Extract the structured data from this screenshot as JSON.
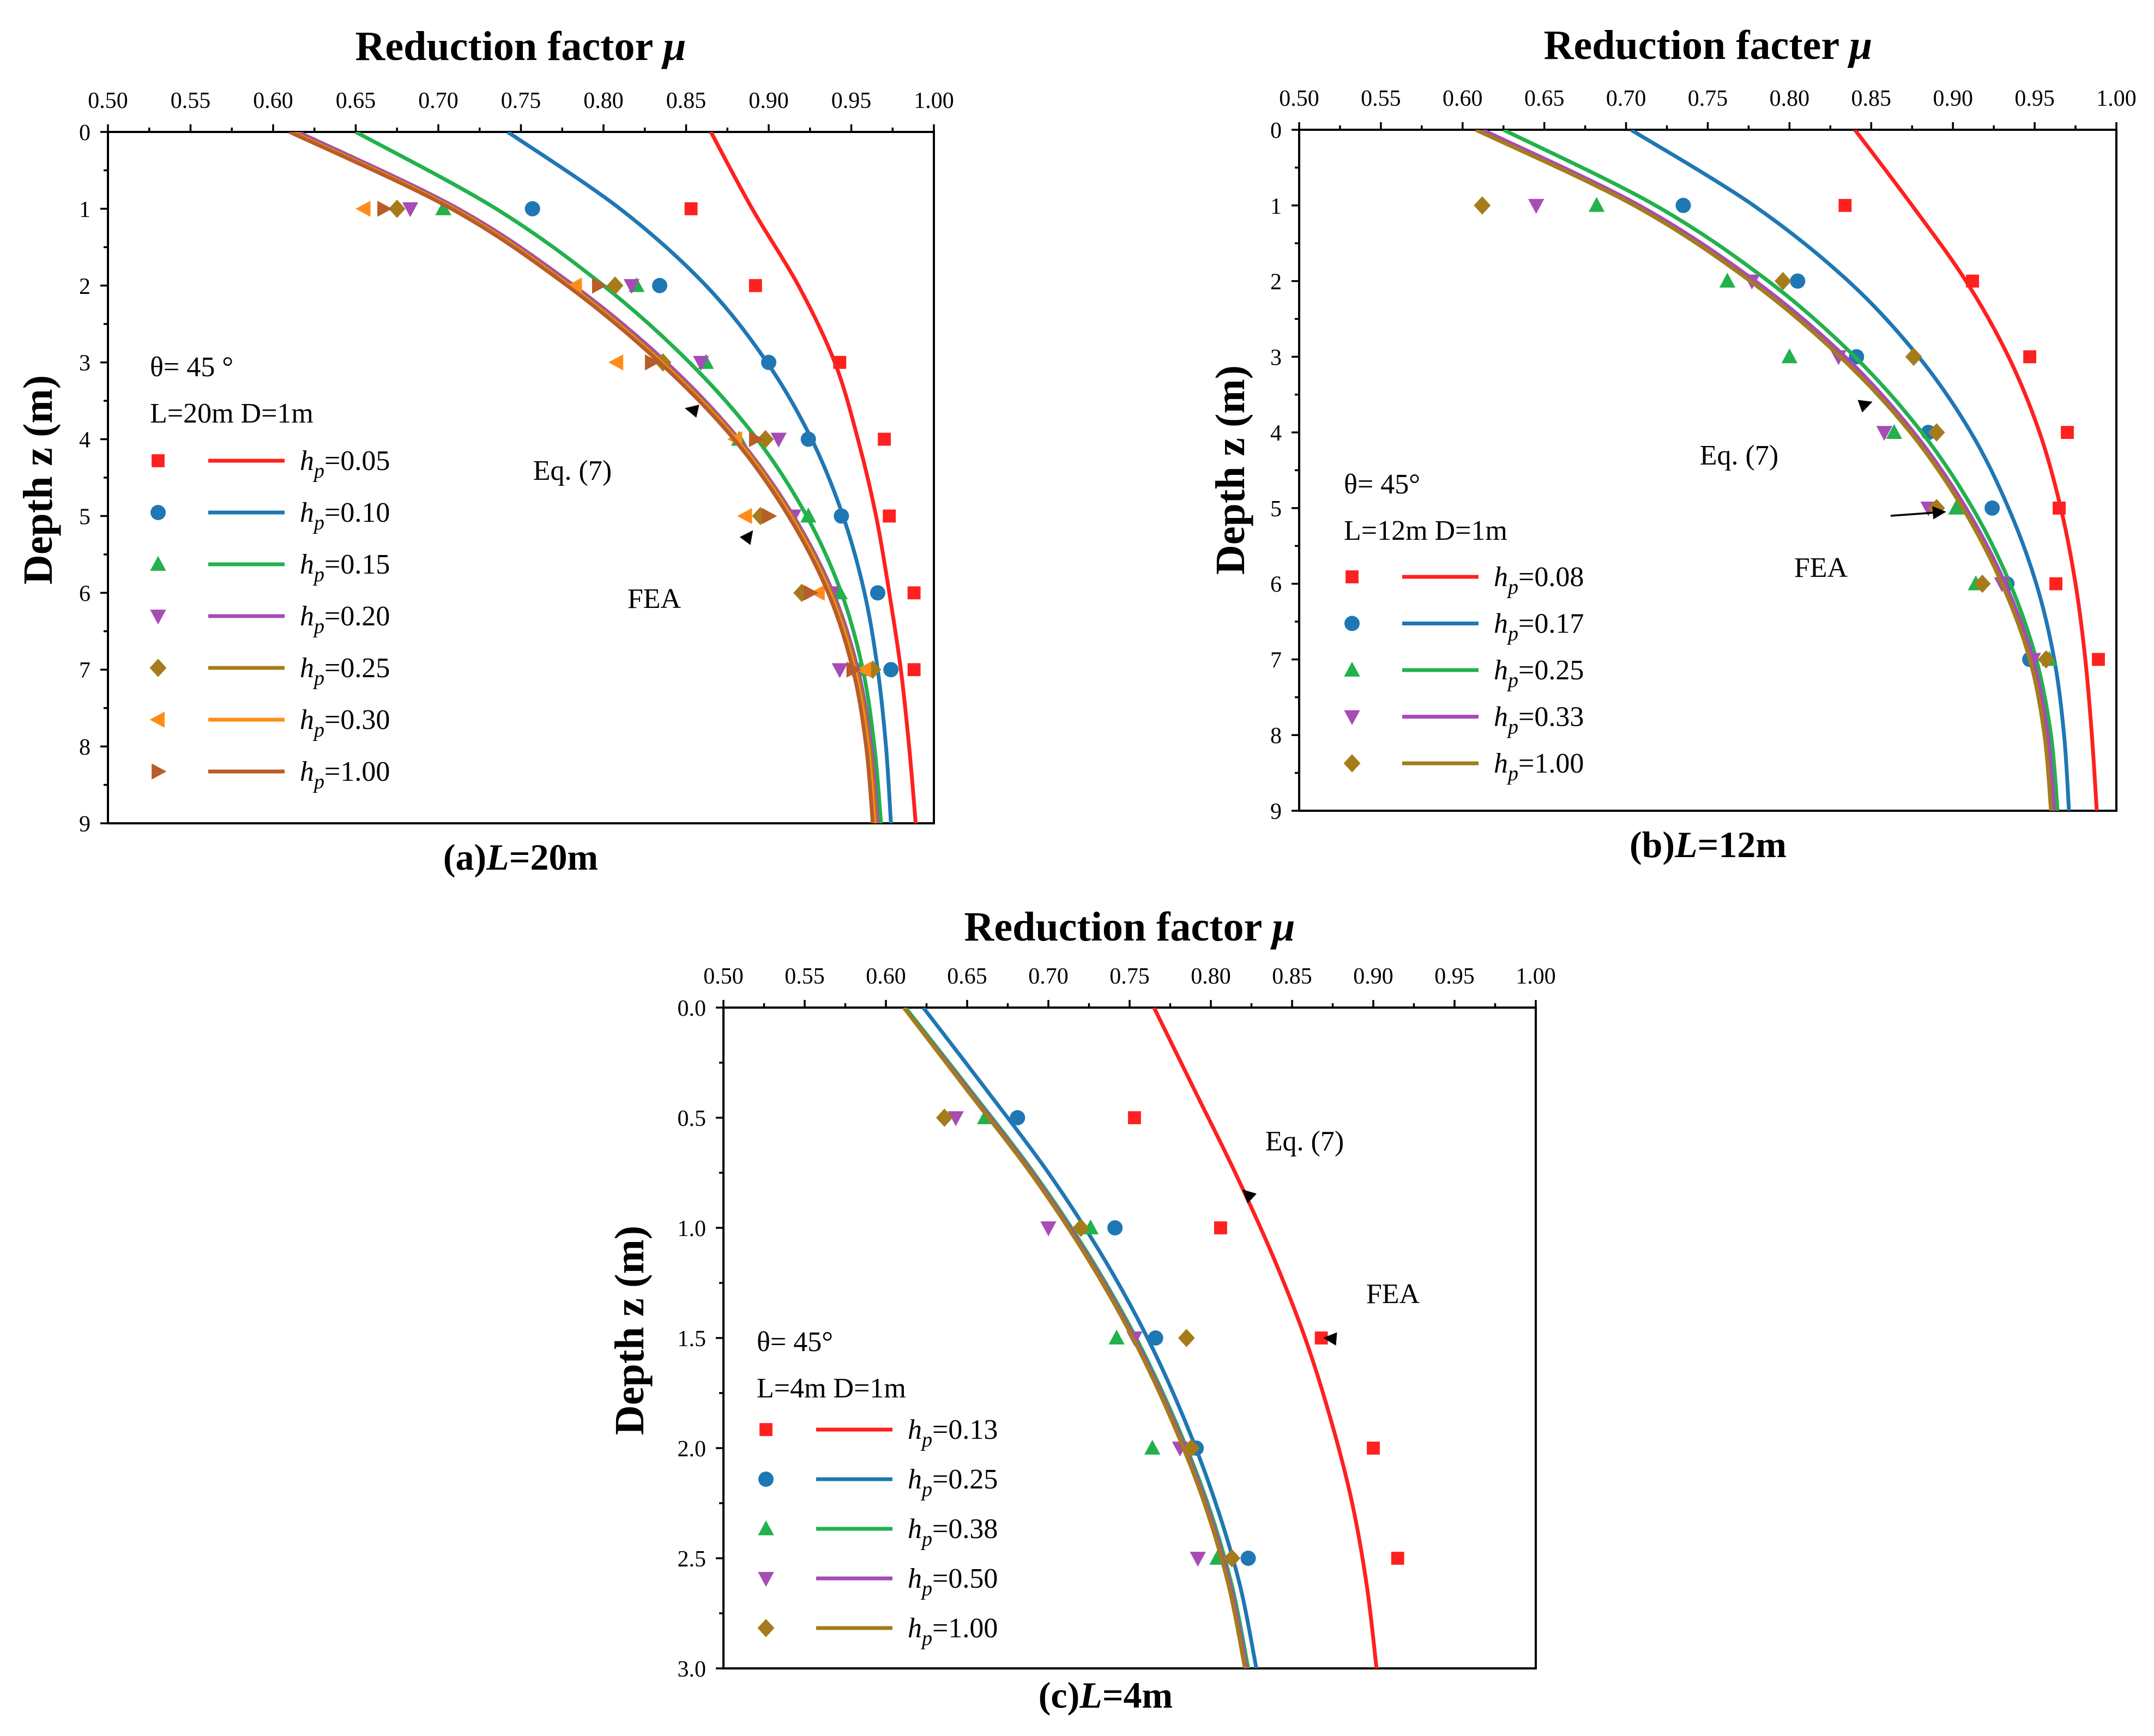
{
  "chart_data": [
    {
      "id": "a",
      "type": "scatter+line",
      "title": "Reduction factor μ",
      "title_text": "Reduction factor",
      "xlabel": "Reduction factor μ",
      "ylabel": "Depth z (m)",
      "caption_prefix": "(a)",
      "caption_var": "L",
      "caption_suffix": "=20m",
      "xlim": [
        0.5,
        1.0
      ],
      "ylim": [
        0,
        9
      ],
      "x_ticks": [
        "0.50",
        "0.55",
        "0.60",
        "0.65",
        "0.70",
        "0.75",
        "0.80",
        "0.85",
        "0.90",
        "0.95",
        "1.00"
      ],
      "y_ticks": [
        "0",
        "1",
        "2",
        "3",
        "4",
        "5",
        "6",
        "7",
        "8",
        "9"
      ],
      "params": [
        "θ= 45 °",
        "L=20m D=1m"
      ],
      "annotations": [
        {
          "text": "Eq. (7)",
          "target": {
            "x": 0.85,
            "z": 3.6
          }
        },
        {
          "text": "FEA",
          "target": {
            "x": 0.89,
            "z": 5.2
          }
        }
      ],
      "series": [
        {
          "name": "hp=0.05",
          "hp_label": "=0.05",
          "color": "#FF2020",
          "marker": "square",
          "curve": {
            "x": [
              0.865,
              0.89,
              0.918,
              0.94,
              0.954,
              0.965,
              0.973,
              0.98,
              0.985,
              0.989
            ],
            "z": [
              0,
              1,
              2,
              3,
              4,
              5,
              6,
              7,
              8,
              9
            ]
          },
          "points": {
            "x": [
              0.853,
              0.892,
              0.943,
              0.97,
              0.973,
              0.988,
              0.988
            ],
            "z": [
              1,
              2,
              3,
              4,
              5,
              6,
              7
            ]
          }
        },
        {
          "name": "hp=0.10",
          "hp_label": "=0.10",
          "color": "#1F77B4",
          "marker": "circle",
          "curve": {
            "x": [
              0.742,
              0.81,
              0.862,
              0.899,
              0.926,
              0.945,
              0.958,
              0.966,
              0.971,
              0.974
            ],
            "z": [
              0,
              1,
              2,
              3,
              4,
              5,
              6,
              7,
              8,
              9
            ]
          },
          "points": {
            "x": [
              0.757,
              0.834,
              0.9,
              0.924,
              0.944,
              0.966,
              0.974
            ],
            "z": [
              1,
              2,
              3,
              4,
              5,
              6,
              7
            ]
          }
        },
        {
          "name": "hp=0.15",
          "hp_label": "=0.15",
          "color": "#22B14C",
          "marker": "triangle-up",
          "curve": {
            "x": [
              0.65,
              0.735,
              0.8,
              0.852,
              0.893,
              0.923,
              0.944,
              0.957,
              0.964,
              0.968
            ],
            "z": [
              0,
              1,
              2,
              3,
              4,
              5,
              6,
              7,
              8,
              9
            ]
          },
          "points": {
            "x": [
              0.703,
              0.82,
              0.862,
              0.882,
              0.924,
              0.943,
              0.955
            ],
            "z": [
              1,
              2,
              3,
              4,
              5,
              6,
              7
            ]
          }
        },
        {
          "name": "hp=0.20",
          "hp_label": "=0.20",
          "color": "#A64CB4",
          "marker": "triangle-down",
          "curve": {
            "x": [
              0.615,
              0.712,
              0.782,
              0.838,
              0.882,
              0.915,
              0.939,
              0.954,
              0.962,
              0.966
            ],
            "z": [
              0,
              1,
              2,
              3,
              4,
              5,
              6,
              7,
              8,
              9
            ]
          },
          "points": {
            "x": [
              0.683,
              0.817,
              0.859,
              0.906,
              0.915,
              0.938,
              0.943
            ],
            "z": [
              1,
              2,
              3,
              4,
              5,
              6,
              7
            ]
          }
        },
        {
          "name": "hp=0.25",
          "hp_label": "=0.25",
          "color": "#A67C1A",
          "marker": "diamond",
          "curve": {
            "x": [
              0.612,
              0.71,
              0.78,
              0.836,
              0.881,
              0.914,
              0.938,
              0.953,
              0.961,
              0.965
            ],
            "z": [
              0,
              1,
              2,
              3,
              4,
              5,
              6,
              7,
              8,
              9
            ]
          },
          "points": {
            "x": [
              0.675,
              0.807,
              0.836,
              0.898,
              0.895,
              0.92,
              0.963
            ],
            "z": [
              1,
              2,
              3,
              4,
              5,
              6,
              7
            ]
          }
        },
        {
          "name": "hp=0.30",
          "hp_label": "=0.30",
          "color": "#FF8C1A",
          "marker": "triangle-left",
          "curve": {
            "x": [
              0.611,
              0.709,
              0.779,
              0.835,
              0.88,
              0.913,
              0.937,
              0.952,
              0.96,
              0.964
            ],
            "z": [
              0,
              1,
              2,
              3,
              4,
              5,
              6,
              7,
              8,
              9
            ]
          },
          "points": {
            "x": [
              0.655,
              0.783,
              0.808,
              0.88,
              0.886,
              0.93,
              0.958
            ],
            "z": [
              1,
              2,
              3,
              4,
              5,
              6,
              7
            ]
          }
        },
        {
          "name": "hp=1.00",
          "hp_label": "=1.00",
          "color": "#B85C2A",
          "marker": "triangle-right",
          "curve": {
            "x": [
              0.61,
              0.708,
              0.778,
              0.834,
              0.879,
              0.912,
              0.936,
              0.951,
              0.959,
              0.963
            ],
            "z": [
              0,
              1,
              2,
              3,
              4,
              5,
              6,
              7,
              8,
              9
            ]
          },
          "points": {
            "x": [
              0.667,
              0.797,
              0.829,
              0.892,
              0.9,
              0.925,
              0.951
            ],
            "z": [
              1,
              2,
              3,
              4,
              5,
              6,
              7
            ]
          }
        }
      ]
    },
    {
      "id": "b",
      "type": "scatter+line",
      "title": "Reduction facter μ",
      "title_text": "Reduction facter",
      "xlabel": "Reduction facter μ",
      "ylabel": "Depth z (m)",
      "caption_prefix": "(b)",
      "caption_var": "L",
      "caption_suffix": "=12m",
      "xlim": [
        0.5,
        1.0
      ],
      "ylim": [
        0,
        9
      ],
      "x_ticks": [
        "0.50",
        "0.55",
        "0.60",
        "0.65",
        "0.70",
        "0.75",
        "0.80",
        "0.85",
        "0.90",
        "0.95",
        "1.00"
      ],
      "y_ticks": [
        "0",
        "1",
        "2",
        "3",
        "4",
        "5",
        "6",
        "7",
        "8",
        "9"
      ],
      "params": [
        "θ= 45°",
        "L=12m D=1m"
      ],
      "annotations": [
        {
          "text": "Eq. (7)",
          "target": {
            "x": 0.85,
            "z": 3.6
          }
        },
        {
          "text": "FEA",
          "target": {
            "x": 0.895,
            "z": 5.05
          }
        }
      ],
      "series": [
        {
          "name": "hp=0.08",
          "hp_label": "=0.08",
          "color": "#FF2020",
          "marker": "square",
          "curve": {
            "x": [
              0.84,
              0.875,
              0.908,
              0.934,
              0.953,
              0.966,
              0.975,
              0.981,
              0.985,
              0.988
            ],
            "z": [
              0,
              1,
              2,
              3,
              4,
              5,
              6,
              7,
              8,
              9
            ]
          },
          "points": {
            "x": [
              0.834,
              0.912,
              0.947,
              0.97,
              0.965,
              0.963,
              0.989
            ],
            "z": [
              1,
              2,
              3,
              4,
              5,
              6,
              7
            ]
          }
        },
        {
          "name": "hp=0.17",
          "hp_label": "=0.17",
          "color": "#1F77B4",
          "marker": "circle",
          "curve": {
            "x": [
              0.703,
              0.778,
              0.836,
              0.879,
              0.911,
              0.934,
              0.951,
              0.962,
              0.968,
              0.971
            ],
            "z": [
              0,
              1,
              2,
              3,
              4,
              5,
              6,
              7,
              8,
              9
            ]
          },
          "points": {
            "x": [
              0.735,
              0.805,
              0.841,
              0.885,
              0.924,
              0.933,
              0.947
            ],
            "z": [
              1,
              2,
              3,
              4,
              5,
              6,
              7
            ]
          }
        },
        {
          "name": "hp=0.25",
          "hp_label": "=0.25",
          "color": "#22B14C",
          "marker": "triangle-up",
          "curve": {
            "x": [
              0.625,
              0.718,
              0.787,
              0.84,
              0.881,
              0.912,
              0.935,
              0.951,
              0.96,
              0.964
            ],
            "z": [
              0,
              1,
              2,
              3,
              4,
              5,
              6,
              7,
              8,
              9
            ]
          },
          "points": {
            "x": [
              0.682,
              0.762,
              0.8,
              0.864,
              0.902,
              0.914,
              0.959
            ],
            "z": [
              1,
              2,
              3,
              4,
              5,
              6,
              7
            ]
          }
        },
        {
          "name": "hp=0.33",
          "hp_label": "=0.33",
          "color": "#A64CB4",
          "marker": "triangle-down",
          "curve": {
            "x": [
              0.612,
              0.708,
              0.779,
              0.834,
              0.876,
              0.908,
              0.932,
              0.949,
              0.958,
              0.962
            ],
            "z": [
              0,
              1,
              2,
              3,
              4,
              5,
              6,
              7,
              8,
              9
            ]
          },
          "points": {
            "x": [
              0.645,
              0.777,
              0.83,
              0.858,
              0.885,
              0.93,
              0.949
            ],
            "z": [
              1,
              2,
              3,
              4,
              5,
              6,
              7
            ]
          }
        },
        {
          "name": "hp=1.00",
          "hp_label": "=1.00",
          "color": "#A67C1A",
          "marker": "diamond",
          "curve": {
            "x": [
              0.608,
              0.705,
              0.776,
              0.831,
              0.874,
              0.906,
              0.93,
              0.947,
              0.956,
              0.96
            ],
            "z": [
              0,
              1,
              2,
              3,
              4,
              5,
              6,
              7,
              8,
              9
            ]
          },
          "points": {
            "x": [
              0.612,
              0.796,
              0.876,
              0.89,
              0.89,
              0.918,
              0.957
            ],
            "z": [
              1,
              2,
              3,
              4,
              5,
              6,
              7
            ]
          }
        }
      ]
    },
    {
      "id": "c",
      "type": "scatter+line",
      "title": "Reduction factor μ",
      "title_text": "Reduction factor",
      "xlabel": "Reduction factor μ",
      "ylabel": "Depth z (m)",
      "caption_prefix": "(c)",
      "caption_var": "L",
      "caption_suffix": "=4m",
      "xlim": [
        0.5,
        1.0
      ],
      "ylim": [
        0,
        3
      ],
      "x_ticks": [
        "0.50",
        "0.55",
        "0.60",
        "0.65",
        "0.70",
        "0.75",
        "0.80",
        "0.85",
        "0.90",
        "0.95",
        "1.00"
      ],
      "y_ticks": [
        "0.0",
        "0.5",
        "1.0",
        "1.5",
        "2.0",
        "2.5",
        "3.0"
      ],
      "params": [
        "θ= 45°",
        "L=4m D=1m"
      ],
      "annotations": [
        {
          "text": "Eq. (7)",
          "target": {
            "x": 0.82,
            "z": 0.83
          }
        },
        {
          "text": "FEA",
          "target": {
            "x": 0.87,
            "z": 1.5
          }
        }
      ],
      "series": [
        {
          "name": "hp=0.13",
          "hp_label": "=0.13",
          "color": "#FF2020",
          "marker": "square",
          "curve": {
            "x": [
              0.765,
              0.79,
              0.815,
              0.838,
              0.858,
              0.874,
              0.887,
              0.896,
              0.902
            ],
            "z": [
              0,
              0.375,
              0.75,
              1.125,
              1.5,
              1.875,
              2.25,
              2.625,
              3.0
            ]
          },
          "points": {
            "x": [
              0.753,
              0.806,
              0.868,
              0.9,
              0.915
            ],
            "z": [
              0.5,
              1.0,
              1.5,
              2.0,
              2.5
            ]
          }
        },
        {
          "name": "hp=0.25",
          "hp_label": "=0.25",
          "color": "#1F77B4",
          "marker": "circle",
          "curve": {
            "x": [
              0.623,
              0.662,
              0.7,
              0.733,
              0.761,
              0.784,
              0.803,
              0.818,
              0.828
            ],
            "z": [
              0,
              0.375,
              0.75,
              1.125,
              1.5,
              1.875,
              2.25,
              2.625,
              3.0
            ]
          },
          "points": {
            "x": [
              0.681,
              0.741,
              0.766,
              0.791,
              0.823
            ],
            "z": [
              0.5,
              1.0,
              1.5,
              2.0,
              2.5
            ]
          }
        },
        {
          "name": "hp=0.38",
          "hp_label": "=0.38",
          "color": "#22B14C",
          "marker": "triangle-up",
          "curve": {
            "x": [
              0.612,
              0.652,
              0.691,
              0.725,
              0.754,
              0.778,
              0.798,
              0.813,
              0.823
            ],
            "z": [
              0,
              0.375,
              0.75,
              1.125,
              1.5,
              1.875,
              2.25,
              2.625,
              3.0
            ]
          },
          "points": {
            "x": [
              0.661,
              0.726,
              0.742,
              0.764,
              0.804
            ],
            "z": [
              0.5,
              1.0,
              1.5,
              2.0,
              2.5
            ]
          }
        },
        {
          "name": "hp=0.50",
          "hp_label": "=0.50",
          "color": "#A64CB4",
          "marker": "triangle-down",
          "curve": {
            "x": [
              0.611,
              0.651,
              0.69,
              0.724,
              0.753,
              0.777,
              0.797,
              0.812,
              0.822
            ],
            "z": [
              0,
              0.375,
              0.75,
              1.125,
              1.5,
              1.875,
              2.25,
              2.625,
              3.0
            ]
          },
          "points": {
            "x": [
              0.643,
              0.7,
              0.753,
              0.781,
              0.792
            ],
            "z": [
              0.5,
              1.0,
              1.5,
              2.0,
              2.5
            ]
          }
        },
        {
          "name": "hp=1.00",
          "hp_label": "=1.00",
          "color": "#A67C1A",
          "marker": "diamond",
          "curve": {
            "x": [
              0.611,
              0.65,
              0.689,
              0.723,
              0.752,
              0.776,
              0.796,
              0.811,
              0.821
            ],
            "z": [
              0,
              0.375,
              0.75,
              1.125,
              1.5,
              1.875,
              2.25,
              2.625,
              3.0
            ]
          },
          "points": {
            "x": [
              0.636,
              0.72,
              0.785,
              0.788,
              0.813
            ],
            "z": [
              0.5,
              1.0,
              1.5,
              2.0,
              2.5
            ]
          }
        }
      ]
    }
  ]
}
